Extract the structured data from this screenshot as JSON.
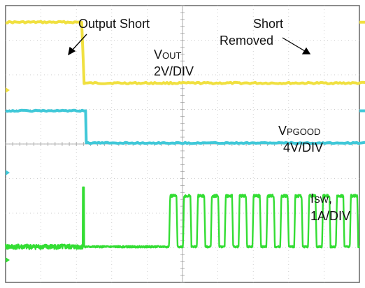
{
  "chart_data": {
    "type": "line",
    "title": "",
    "grid": "on",
    "x_divisions": 10,
    "y_divisions": 8,
    "x_units": "time (div)",
    "series": [
      {
        "name_main": "V",
        "name_sub": "OUT",
        "scale": "2V/DIV",
        "color": "#f0e040",
        "x": [
          0,
          2.15,
          2.22,
          10.05,
          10.95,
          11.12,
          12.6
        ],
        "y": [
          7.52,
          7.52,
          5.76,
          5.76,
          5.88,
          7.52,
          7.52
        ]
      },
      {
        "name_main": "V",
        "name_sub": "PGOOD",
        "scale": "4V/DIV",
        "color": "#40c8d8",
        "x": [
          0,
          2.26,
          2.28,
          11.62,
          11.64,
          12.6
        ],
        "y": [
          4.96,
          4.96,
          4.03,
          4.03,
          4.96,
          4.96
        ]
      },
      {
        "name_main": "I",
        "name_sub": "SW",
        "name_suffix": ",",
        "scale": "1A/DIV",
        "color": "#33dd33",
        "baseline": 1.03,
        "pulse_top": 2.5,
        "pulse_start": 4.62,
        "pulse_period": 0.393,
        "pulse_count": 16,
        "pulse_width": 0.24,
        "spike_x": 2.2,
        "spike_peak": 2.75
      }
    ],
    "annotations": {
      "output_short": "Output Short",
      "short_removed_line1": "Short",
      "short_removed_line2": "Removed",
      "vout_scale": "2V/DIV",
      "vpgood_scale": "4V/DIV",
      "isw_scale": "1A/DIV"
    }
  }
}
